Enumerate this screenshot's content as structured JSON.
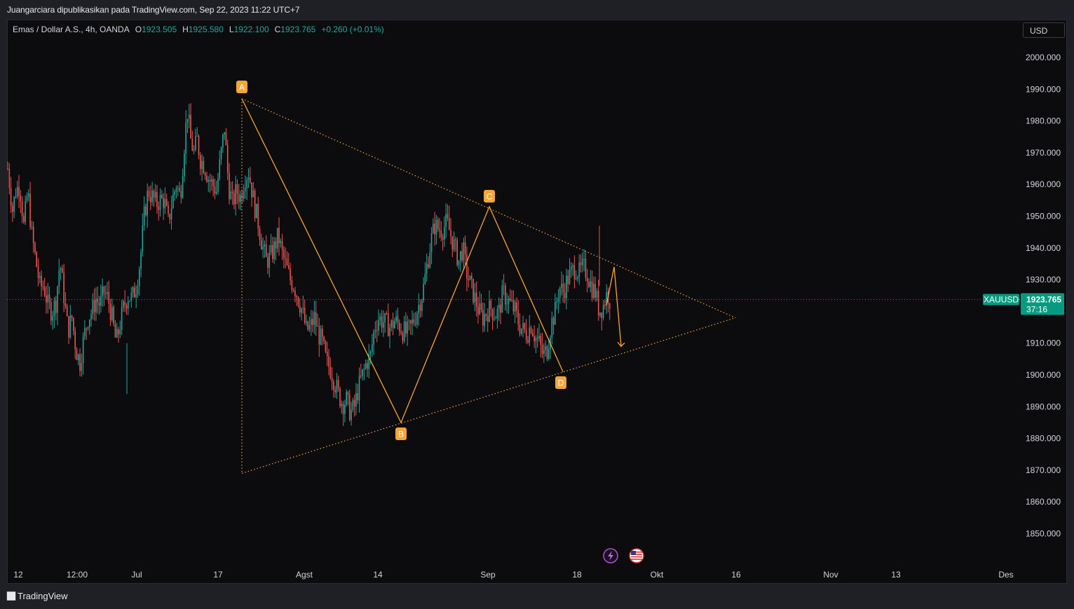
{
  "header": {
    "publish_text": "Juangarciara dipublikasikan pada TradingView.com, Sep 22, 2023 11:22 UTC+7"
  },
  "legend": {
    "symbol": "Emas / Dollar A.S., 4h, OANDA",
    "open_label": "O",
    "open": "1923.505",
    "high_label": "H",
    "high": "1925.580",
    "low_label": "L",
    "low": "1922.100",
    "close_label": "C",
    "close": "1923.765",
    "change": "+0.260 (+0.01%)"
  },
  "currency_button": "USD",
  "price_tag": {
    "symbol": "XAUUSD",
    "price": "1923.765",
    "countdown": "37:16"
  },
  "footer": {
    "brand": "TradingView"
  },
  "colors": {
    "background": "#0c0c0f",
    "up": "#26a69a",
    "down": "#ef5350",
    "drawing": "#f7a534",
    "price_tag": "#089981"
  },
  "icons": [
    "lightning-event-icon",
    "us-flag-event-icon"
  ],
  "chart_data": {
    "type": "candlestick",
    "title": "Emas / Dollar A.S., 4h, OANDA",
    "ylim": [
      1845,
      2005
    ],
    "y_ticks": [
      2000,
      1990,
      1980,
      1970,
      1960,
      1950,
      1940,
      1930,
      1910,
      1900,
      1890,
      1880,
      1870,
      1860,
      1850
    ],
    "y_tick_labels": [
      "2000.000",
      "1990.000",
      "1980.000",
      "1970.000",
      "1960.000",
      "1950.000",
      "1940.000",
      "1930.000",
      "1910.000",
      "1900.000",
      "1890.000",
      "1880.000",
      "1870.000",
      "1860.000",
      "1850.000"
    ],
    "x_tick_labels": [
      "12",
      "12:00",
      "Jul",
      "17",
      "Agst",
      "14",
      "Sep",
      "18",
      "Okt",
      "16",
      "Nov",
      "13",
      "Des"
    ],
    "last_price": 1923.765,
    "grid": false,
    "price_path": [
      [
        0,
        1965
      ],
      [
        6,
        1952
      ],
      [
        10,
        1958
      ],
      [
        15,
        1960
      ],
      [
        20,
        1947
      ],
      [
        25,
        1958
      ],
      [
        30,
        1944
      ],
      [
        35,
        1936
      ],
      [
        40,
        1928
      ],
      [
        45,
        1928
      ],
      [
        50,
        1922
      ],
      [
        55,
        1920
      ],
      [
        60,
        1923
      ],
      [
        65,
        1936
      ],
      [
        70,
        1925
      ],
      [
        75,
        1914
      ],
      [
        80,
        1918
      ],
      [
        85,
        1908
      ],
      [
        90,
        1904
      ],
      [
        95,
        1912
      ],
      [
        100,
        1918
      ],
      [
        105,
        1920
      ],
      [
        110,
        1924
      ],
      [
        115,
        1922
      ],
      [
        120,
        1926
      ],
      [
        125,
        1924
      ],
      [
        130,
        1918
      ],
      [
        135,
        1910
      ],
      [
        140,
        1916
      ],
      [
        145,
        1922
      ],
      [
        150,
        1925
      ],
      [
        155,
        1924
      ],
      [
        160,
        1928
      ],
      [
        165,
        1936
      ],
      [
        170,
        1950
      ],
      [
        175,
        1958
      ],
      [
        180,
        1956
      ],
      [
        185,
        1954
      ],
      [
        190,
        1955
      ],
      [
        195,
        1955
      ],
      [
        200,
        1948
      ],
      [
        205,
        1955
      ],
      [
        210,
        1960
      ],
      [
        215,
        1956
      ],
      [
        218,
        1966
      ],
      [
        221,
        1976
      ],
      [
        224,
        1983
      ],
      [
        228,
        1974
      ],
      [
        232,
        1970
      ],
      [
        236,
        1974
      ],
      [
        240,
        1968
      ],
      [
        245,
        1966
      ],
      [
        250,
        1962
      ],
      [
        255,
        1960
      ],
      [
        260,
        1958
      ],
      [
        265,
        1968
      ],
      [
        270,
        1978
      ],
      [
        275,
        1960
      ],
      [
        280,
        1954
      ],
      [
        285,
        1958
      ],
      [
        290,
        1956
      ],
      [
        295,
        1962
      ],
      [
        300,
        1964
      ],
      [
        303,
        1960
      ],
      [
        307,
        1954
      ],
      [
        312,
        1948
      ],
      [
        317,
        1941
      ],
      [
        322,
        1936
      ],
      [
        327,
        1937
      ],
      [
        332,
        1940
      ],
      [
        337,
        1944
      ],
      [
        342,
        1938
      ],
      [
        347,
        1934
      ],
      [
        352,
        1930
      ],
      [
        357,
        1928
      ],
      [
        362,
        1924
      ],
      [
        367,
        1920
      ],
      [
        372,
        1914
      ],
      [
        377,
        1915
      ],
      [
        382,
        1918
      ],
      [
        387,
        1913
      ],
      [
        392,
        1910
      ],
      [
        397,
        1904
      ],
      [
        402,
        1902
      ],
      [
        407,
        1898
      ],
      [
        412,
        1894
      ],
      [
        417,
        1891
      ],
      [
        422,
        1892
      ],
      [
        427,
        1888
      ],
      [
        432,
        1890
      ],
      [
        437,
        1896
      ],
      [
        442,
        1900
      ],
      [
        447,
        1904
      ],
      [
        452,
        1906
      ],
      [
        457,
        1915
      ],
      [
        462,
        1918
      ],
      [
        467,
        1917
      ],
      [
        472,
        1916
      ],
      [
        477,
        1915
      ],
      [
        482,
        1917
      ],
      [
        487,
        1916
      ],
      [
        492,
        1914
      ],
      [
        497,
        1913
      ],
      [
        502,
        1915
      ],
      [
        507,
        1918
      ],
      [
        512,
        1922
      ],
      [
        517,
        1926
      ],
      [
        522,
        1934
      ],
      [
        527,
        1942
      ],
      [
        532,
        1947
      ],
      [
        537,
        1946
      ],
      [
        542,
        1946
      ],
      [
        547,
        1948
      ],
      [
        552,
        1944
      ],
      [
        557,
        1940
      ],
      [
        562,
        1936
      ],
      [
        567,
        1940
      ],
      [
        572,
        1932
      ],
      [
        577,
        1928
      ],
      [
        582,
        1924
      ],
      [
        587,
        1920
      ],
      [
        592,
        1918
      ],
      [
        597,
        1920
      ],
      [
        602,
        1921
      ],
      [
        607,
        1919
      ],
      [
        612,
        1920
      ],
      [
        617,
        1926
      ],
      [
        622,
        1924
      ],
      [
        627,
        1922
      ],
      [
        632,
        1920
      ],
      [
        637,
        1916
      ],
      [
        642,
        1914
      ],
      [
        647,
        1913
      ],
      [
        652,
        1916
      ],
      [
        657,
        1912
      ],
      [
        662,
        1910
      ],
      [
        667,
        1906
      ],
      [
        672,
        1908
      ],
      [
        677,
        1916
      ],
      [
        682,
        1920
      ],
      [
        687,
        1928
      ],
      [
        692,
        1926
      ],
      [
        697,
        1930
      ],
      [
        702,
        1932
      ],
      [
        707,
        1934
      ],
      [
        712,
        1932
      ],
      [
        717,
        1934
      ],
      [
        722,
        1932
      ],
      [
        727,
        1928
      ],
      [
        732,
        1926
      ],
      [
        737,
        1920
      ],
      [
        742,
        1922
      ],
      [
        747,
        1926
      ],
      [
        750,
        1923.765
      ]
    ]
  },
  "drawings": {
    "labels": [
      "A",
      "B",
      "C",
      "D"
    ],
    "points": [
      {
        "label": "A",
        "price": 1987
      },
      {
        "label": "B",
        "price": 1885
      },
      {
        "label": "C",
        "price": 1953
      },
      {
        "label": "D",
        "price": 1901
      }
    ]
  }
}
